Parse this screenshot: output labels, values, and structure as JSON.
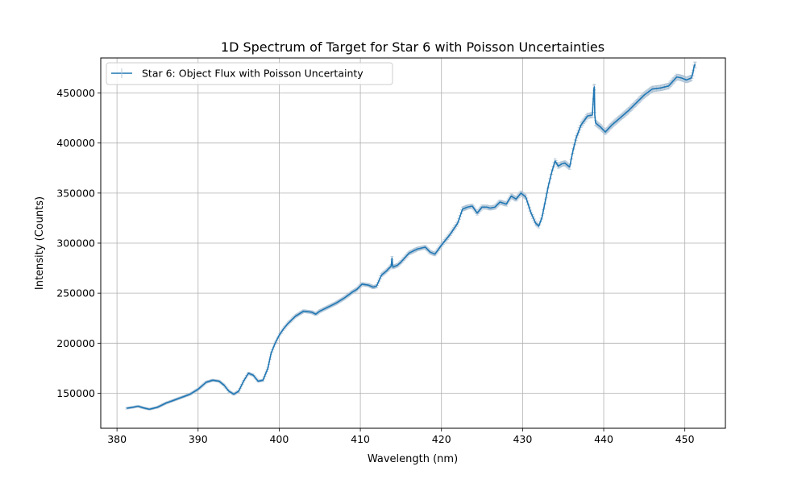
{
  "chart_data": {
    "type": "line",
    "title": "1D Spectrum of Target for Star 6 with Poisson Uncertainties",
    "xlabel": "Wavelength (nm)",
    "ylabel": "Intensity (Counts)",
    "xlim": [
      378,
      455
    ],
    "ylim": [
      115000,
      485000
    ],
    "xticks": [
      380,
      390,
      400,
      410,
      420,
      430,
      440,
      450
    ],
    "yticks": [
      150000,
      200000,
      250000,
      300000,
      350000,
      400000,
      450000
    ],
    "grid": true,
    "legend_position": "upper-left",
    "colors": {
      "line": "#1f77b4",
      "errorbar": "#b0c4d6"
    },
    "series": [
      {
        "name": "Star 6: Object Flux with Poisson Uncertainty",
        "error_fraction": 0.006,
        "x": [
          381.2,
          382.0,
          382.6,
          383.2,
          384.0,
          385.0,
          386.0,
          387.0,
          388.0,
          389.0,
          390.0,
          391.0,
          391.8,
          392.6,
          393.2,
          393.8,
          394.4,
          395.0,
          395.6,
          396.2,
          396.8,
          397.4,
          398.0,
          398.6,
          399.0,
          399.5,
          400.0,
          400.5,
          401.0,
          402.0,
          403.0,
          404.0,
          404.5,
          405.0,
          405.5,
          406.0,
          407.0,
          408.0,
          409.0,
          409.6,
          410.2,
          411.0,
          411.6,
          412.0,
          412.6,
          413.2,
          413.8,
          413.9,
          414.0,
          414.6,
          415.0,
          416.0,
          417.0,
          418.0,
          418.6,
          419.2,
          420.0,
          421.0,
          422.0,
          422.6,
          423.2,
          423.8,
          424.4,
          425.0,
          425.6,
          426.0,
          426.6,
          427.2,
          428.0,
          428.6,
          429.2,
          429.8,
          430.4,
          431.0,
          431.6,
          432.0,
          432.4,
          432.8,
          433.2,
          433.6,
          434.0,
          434.4,
          434.8,
          435.2,
          435.8,
          436.2,
          436.6,
          437.2,
          438.0,
          438.6,
          438.8,
          438.85,
          438.9,
          439.0,
          439.6,
          440.2,
          441.0,
          442.0,
          443.0,
          444.0,
          445.0,
          446.0,
          447.0,
          448.0,
          449.0,
          449.6,
          450.2,
          450.8,
          451.0,
          451.1,
          451.2,
          451.3
        ],
        "values": [
          135000,
          136000,
          137000,
          135500,
          134000,
          136000,
          140000,
          143000,
          146000,
          149000,
          154000,
          161000,
          163000,
          162000,
          158000,
          152000,
          149000,
          152000,
          162000,
          170000,
          168000,
          162000,
          163000,
          175000,
          190000,
          200000,
          208000,
          214000,
          219000,
          227000,
          232000,
          231000,
          229000,
          232000,
          234000,
          236000,
          240000,
          245000,
          251000,
          254000,
          259000,
          258000,
          256000,
          257000,
          268000,
          272000,
          277000,
          285000,
          276000,
          278000,
          281000,
          290000,
          294000,
          296000,
          291000,
          289000,
          298000,
          308000,
          320000,
          334000,
          336000,
          337000,
          330000,
          336000,
          336000,
          335000,
          336000,
          341000,
          339000,
          347000,
          344000,
          350000,
          346000,
          331000,
          320000,
          317000,
          326000,
          342000,
          358000,
          371000,
          382000,
          377000,
          379000,
          380000,
          376000,
          392000,
          405000,
          418000,
          427000,
          428000,
          455000,
          456000,
          428000,
          420000,
          416000,
          411000,
          418000,
          425000,
          432000,
          440000,
          448000,
          454000,
          455000,
          457000,
          466000,
          465000,
          463000,
          465000,
          470000,
          475000,
          478000,
          478000
        ]
      }
    ]
  }
}
